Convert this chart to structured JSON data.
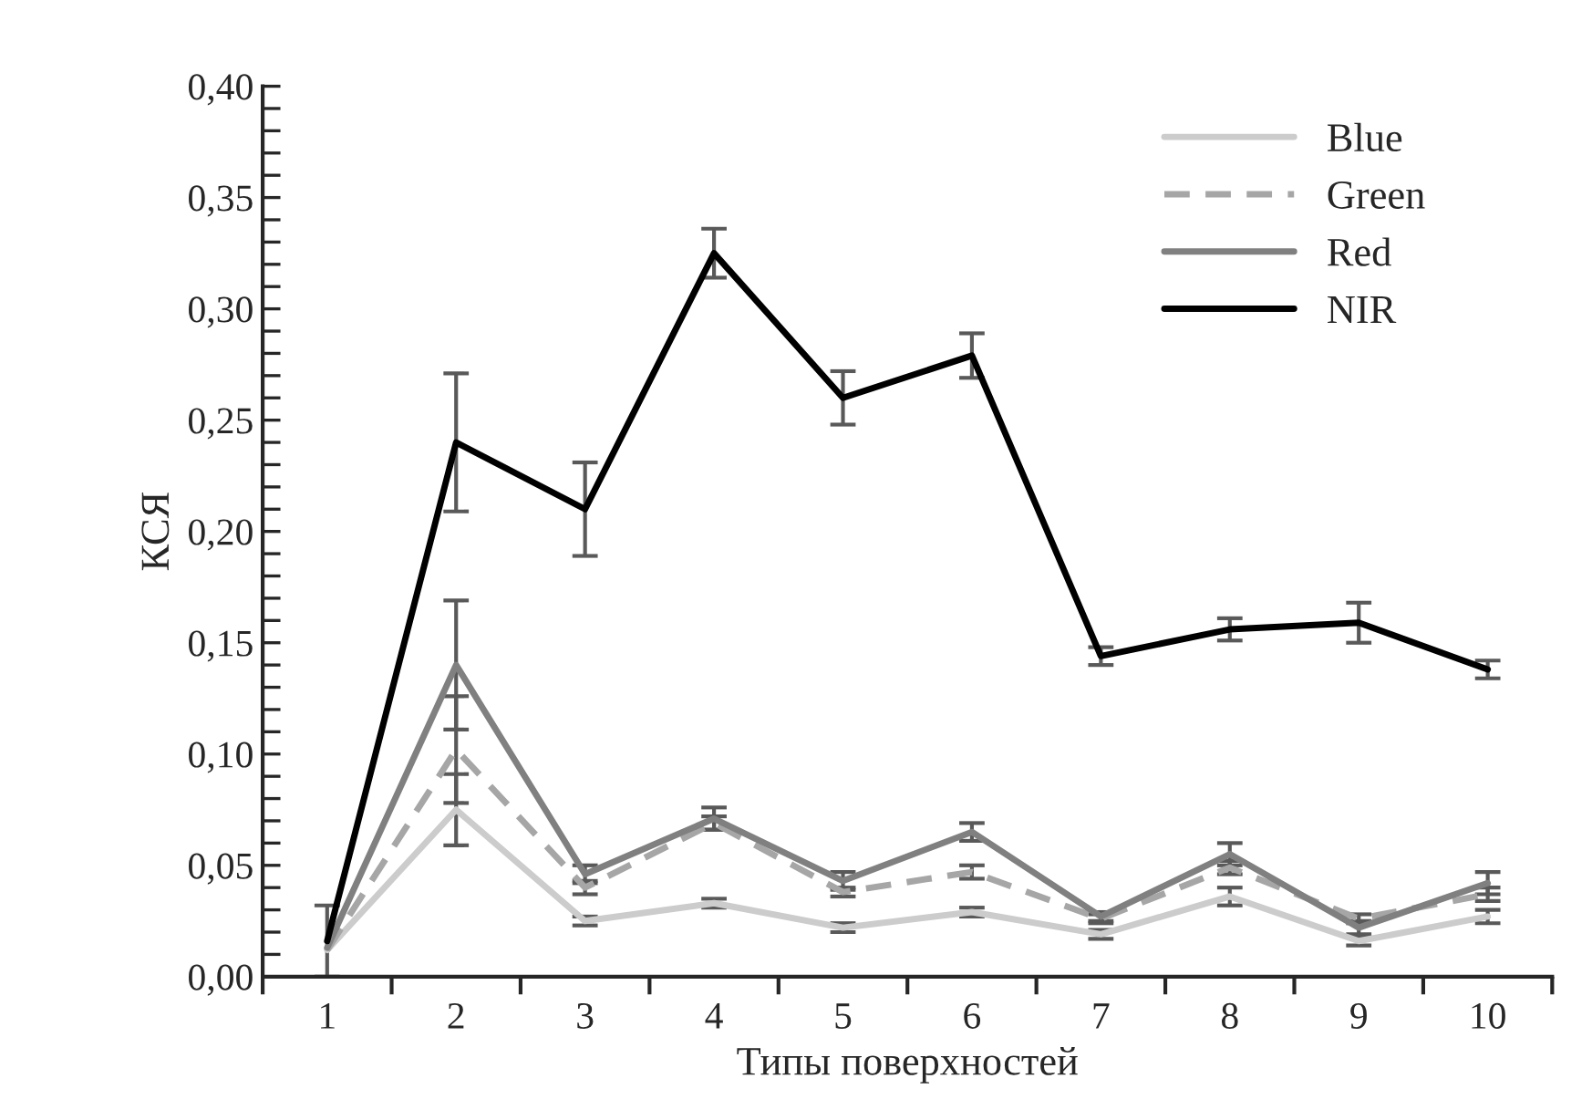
{
  "chart_data": {
    "type": "line",
    "xlabel": "Типы поверхностей",
    "ylabel": "КСЯ",
    "categories": [
      "1",
      "2",
      "3",
      "4",
      "5",
      "6",
      "7",
      "8",
      "9",
      "10"
    ],
    "series": [
      {
        "name": "Blue",
        "color": "#cccccc",
        "line_style": "solid",
        "values": [
          0.012,
          0.075,
          0.025,
          0.033,
          0.022,
          0.029,
          0.019,
          0.036,
          0.016,
          0.027
        ],
        "errors": [
          null,
          0.016,
          0.002,
          0.002,
          0.002,
          0.002,
          0.002,
          0.004,
          0.002,
          0.003
        ]
      },
      {
        "name": "Green",
        "color": "#a6a6a6",
        "line_style": "dashed",
        "values": [
          0.012,
          0.102,
          0.04,
          0.069,
          0.038,
          0.047,
          0.026,
          0.049,
          0.026,
          0.037
        ],
        "errors": [
          null,
          0.024,
          0.003,
          0.003,
          0.002,
          0.003,
          0.002,
          0.003,
          0.002,
          0.003
        ]
      },
      {
        "name": "Red",
        "color": "#808080",
        "line_style": "solid",
        "values": [
          0.013,
          0.14,
          0.046,
          0.071,
          0.043,
          0.065,
          0.027,
          0.055,
          0.022,
          0.042
        ],
        "errors": [
          null,
          0.029,
          0.004,
          0.005,
          0.004,
          0.004,
          0.002,
          0.005,
          0.003,
          0.005
        ]
      },
      {
        "name": "NIR",
        "color": "#000000",
        "line_style": "solid",
        "values": [
          0.016,
          0.24,
          0.21,
          0.325,
          0.26,
          0.279,
          0.144,
          0.156,
          0.159,
          0.138
        ],
        "errors": [
          0.016,
          0.031,
          0.021,
          0.011,
          0.012,
          0.01,
          0.004,
          0.005,
          0.009,
          0.004
        ]
      }
    ],
    "ylim": [
      0,
      0.4
    ],
    "yticks": [
      {
        "value": 0,
        "label": "0,00"
      },
      {
        "value": 0.05,
        "label": "0,05"
      },
      {
        "value": 0.1,
        "label": "0,10"
      },
      {
        "value": 0.15,
        "label": "0,15"
      },
      {
        "value": 0.2,
        "label": "0,20"
      },
      {
        "value": 0.25,
        "label": "0,25"
      },
      {
        "value": 0.3,
        "label": "0,30"
      },
      {
        "value": 0.35,
        "label": "0,35"
      },
      {
        "value": 0.4,
        "label": "0,40"
      }
    ],
    "grid": false,
    "legend": "top right",
    "marker": "none"
  }
}
